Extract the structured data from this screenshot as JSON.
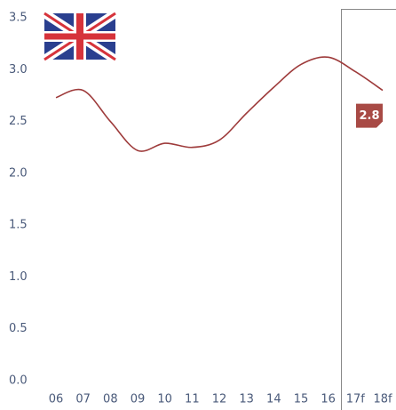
{
  "chart_data": {
    "type": "line",
    "categories": [
      "06",
      "07",
      "08",
      "09",
      "10",
      "11",
      "12",
      "13",
      "14",
      "15",
      "16",
      "17f",
      "18f"
    ],
    "series": [
      {
        "name": null,
        "color": "#9e3b3b",
        "values": [
          2.73,
          2.8,
          2.5,
          2.22,
          2.29,
          2.25,
          2.32,
          2.58,
          2.83,
          3.05,
          3.12,
          2.98,
          2.8
        ]
      }
    ],
    "ylim": [
      0,
      3.5
    ],
    "yticks": [
      {
        "value": 0,
        "label": "0.0"
      },
      0.5,
      {
        "value": 1,
        "label": "1.0"
      },
      1.5,
      {
        "value": 2,
        "label": "2.0"
      },
      2.5,
      {
        "value": 3,
        "label": "3.0"
      },
      3.5
    ],
    "label_color": "#a84a45"
  }
}
